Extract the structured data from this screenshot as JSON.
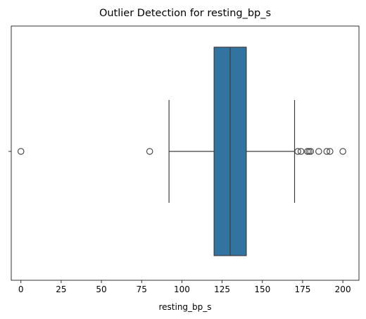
{
  "chart_data": {
    "type": "box",
    "title": "Outlier Detection for resting_bp_s",
    "xlabel": "resting_bp_s",
    "ylabel": "",
    "xlim": [
      -6,
      210
    ],
    "xticks": [
      0,
      25,
      50,
      75,
      100,
      125,
      150,
      175,
      200
    ],
    "grid": false,
    "orientation": "horizontal",
    "box": {
      "whisker_low": 92,
      "q1": 120,
      "median": 130,
      "q3": 140,
      "whisker_high": 170
    },
    "outliers": [
      0,
      80,
      172,
      174,
      178,
      179,
      180,
      185,
      190,
      192,
      200
    ],
    "colors": {
      "box_fill": "#3274a1",
      "line": "#3d3d3d",
      "axis": "#000000"
    }
  }
}
